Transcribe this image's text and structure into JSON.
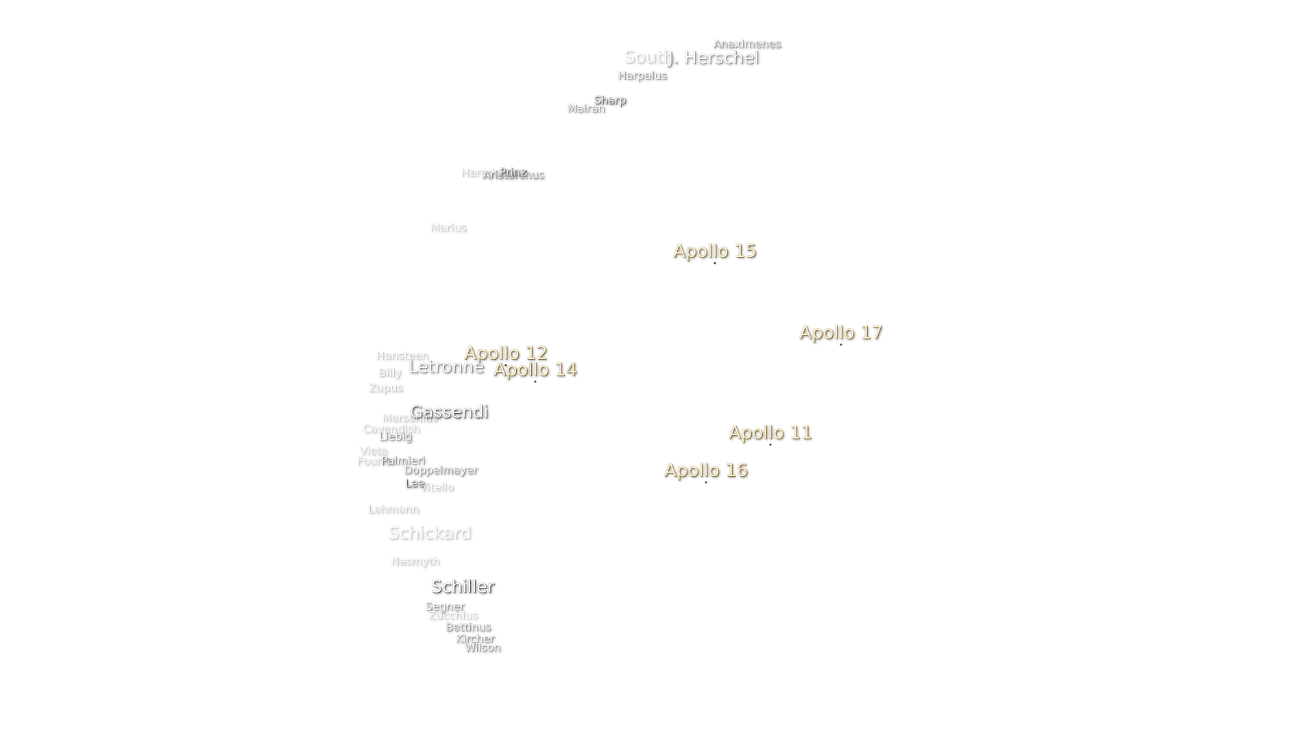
{
  "landing_sites": [
    "Apollo 15",
    "Apollo 17",
    "Apollo 12",
    "Apollo 14",
    "Apollo 11",
    "Apollo 16"
  ],
  "features": [
    "Anaximenes",
    "South",
    "J. Herschel",
    "Harpalus",
    "Sharp",
    "Mairan",
    "Herodotus",
    "Aristarchus",
    "Prinz",
    "Marius",
    "Hansteen",
    "Billy",
    "Zupus",
    "Letronne",
    "Gassendi",
    "Mersenius",
    "Cavendish",
    "Liebig",
    "Vieta",
    "Fourier",
    "Palmieri",
    "Doppelmayer",
    "Lee",
    "Vitello",
    "Lehmann",
    "Schickard",
    "Nasmyth",
    "Schiller",
    "Segner",
    "Zucchius",
    "Bettinus",
    "Kircher",
    "Wilson"
  ]
}
